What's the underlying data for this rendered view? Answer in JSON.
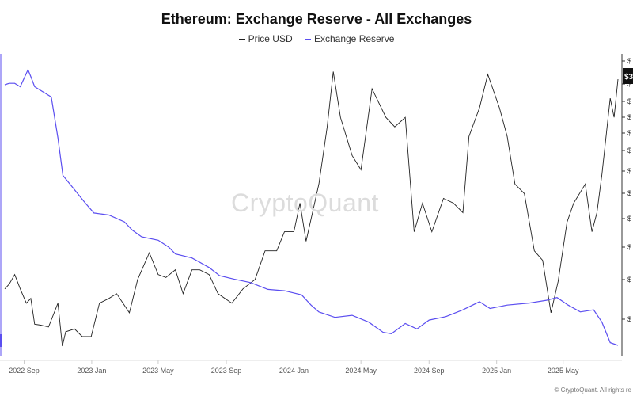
{
  "chart_data": {
    "type": "line",
    "title": "Ethereum: Exchange Reserve - All Exchanges",
    "legend_position": "top-center",
    "grid": false,
    "x_ticks": [
      "2022 Sep",
      "2023 Jan",
      "2023 May",
      "2023 Sep",
      "2024 Jan",
      "2024 May",
      "2024 Sep",
      "2025 Jan",
      "2025 May"
    ],
    "y_right_ticks": [
      "$",
      "$",
      "$",
      "$",
      "$",
      "$",
      "$",
      "$",
      "$",
      "$",
      "$",
      "$",
      "$",
      "$"
    ],
    "current_value_badge": "$3",
    "watermark": "CryptoQuant",
    "credit": "© CryptoQuant. All rights re",
    "series": [
      {
        "name": "Price USD",
        "axis": "right",
        "color": "#222222",
        "values": [
          [
            "2022-07-28",
            1700
          ],
          [
            "2022-08-05",
            1750
          ],
          [
            "2022-08-15",
            1850
          ],
          [
            "2022-08-25",
            1700
          ],
          [
            "2022-09-05",
            1550
          ],
          [
            "2022-09-13",
            1600
          ],
          [
            "2022-09-20",
            1330
          ],
          [
            "2022-10-01",
            1320
          ],
          [
            "2022-10-15",
            1300
          ],
          [
            "2022-11-01",
            1550
          ],
          [
            "2022-11-09",
            1100
          ],
          [
            "2022-11-15",
            1250
          ],
          [
            "2022-12-01",
            1280
          ],
          [
            "2022-12-15",
            1200
          ],
          [
            "2022-12-31",
            1200
          ],
          [
            "2023-01-15",
            1550
          ],
          [
            "2023-02-01",
            1600
          ],
          [
            "2023-02-15",
            1650
          ],
          [
            "2023-03-10",
            1450
          ],
          [
            "2023-03-25",
            1800
          ],
          [
            "2023-04-15",
            2080
          ],
          [
            "2023-05-01",
            1850
          ],
          [
            "2023-05-15",
            1820
          ],
          [
            "2023-06-01",
            1900
          ],
          [
            "2023-06-15",
            1650
          ],
          [
            "2023-07-01",
            1900
          ],
          [
            "2023-07-15",
            1900
          ],
          [
            "2023-08-01",
            1850
          ],
          [
            "2023-08-17",
            1650
          ],
          [
            "2023-09-11",
            1550
          ],
          [
            "2023-10-01",
            1700
          ],
          [
            "2023-10-23",
            1800
          ],
          [
            "2023-11-10",
            2100
          ],
          [
            "2023-12-01",
            2100
          ],
          [
            "2023-12-15",
            2300
          ],
          [
            "2024-01-01",
            2300
          ],
          [
            "2024-01-12",
            2600
          ],
          [
            "2024-01-23",
            2200
          ],
          [
            "2024-02-15",
            2800
          ],
          [
            "2024-03-01",
            3400
          ],
          [
            "2024-03-12",
            3980
          ],
          [
            "2024-03-25",
            3500
          ],
          [
            "2024-04-15",
            3100
          ],
          [
            "2024-05-01",
            2950
          ],
          [
            "2024-05-21",
            3800
          ],
          [
            "2024-06-15",
            3500
          ],
          [
            "2024-07-01",
            3400
          ],
          [
            "2024-07-20",
            3500
          ],
          [
            "2024-08-05",
            2300
          ],
          [
            "2024-08-20",
            2600
          ],
          [
            "2024-09-06",
            2300
          ],
          [
            "2024-09-27",
            2650
          ],
          [
            "2024-10-15",
            2600
          ],
          [
            "2024-11-01",
            2500
          ],
          [
            "2024-11-12",
            3300
          ],
          [
            "2024-12-01",
            3600
          ],
          [
            "2024-12-16",
            3950
          ],
          [
            "2025-01-06",
            3600
          ],
          [
            "2025-01-20",
            3300
          ],
          [
            "2025-02-03",
            2800
          ],
          [
            "2025-02-20",
            2700
          ],
          [
            "2025-03-10",
            2100
          ],
          [
            "2025-03-25",
            2000
          ],
          [
            "2025-04-09",
            1450
          ],
          [
            "2025-04-22",
            1780
          ],
          [
            "2025-05-08",
            2400
          ],
          [
            "2025-05-20",
            2600
          ],
          [
            "2025-06-10",
            2800
          ],
          [
            "2025-06-22",
            2300
          ],
          [
            "2025-07-01",
            2500
          ],
          [
            "2025-07-10",
            2900
          ],
          [
            "2025-07-25",
            3700
          ],
          [
            "2025-08-01",
            3500
          ],
          [
            "2025-08-08",
            3900
          ]
        ]
      },
      {
        "name": "Exchange Reserve",
        "axis": "left",
        "color": "#5b4ef0",
        "values": [
          [
            "2022-07-28",
            25.78
          ],
          [
            "2022-08-05",
            25.8
          ],
          [
            "2022-08-15",
            25.8
          ],
          [
            "2022-08-25",
            25.75
          ],
          [
            "2022-09-08",
            26.0
          ],
          [
            "2022-09-13",
            25.9
          ],
          [
            "2022-09-20",
            25.75
          ],
          [
            "2022-10-10",
            25.65
          ],
          [
            "2022-10-20",
            25.6
          ],
          [
            "2022-11-01",
            25.0
          ],
          [
            "2022-11-10",
            24.45
          ],
          [
            "2022-11-25",
            24.3
          ],
          [
            "2022-12-20",
            24.05
          ],
          [
            "2023-01-05",
            23.9
          ],
          [
            "2023-02-01",
            23.87
          ],
          [
            "2023-03-01",
            23.77
          ],
          [
            "2023-03-15",
            23.65
          ],
          [
            "2023-04-01",
            23.55
          ],
          [
            "2023-05-01",
            23.5
          ],
          [
            "2023-05-20",
            23.4
          ],
          [
            "2023-06-01",
            23.3
          ],
          [
            "2023-07-01",
            23.24
          ],
          [
            "2023-08-01",
            23.1
          ],
          [
            "2023-08-20",
            22.98
          ],
          [
            "2023-09-15",
            22.93
          ],
          [
            "2023-10-15",
            22.88
          ],
          [
            "2023-11-15",
            22.78
          ],
          [
            "2023-12-15",
            22.76
          ],
          [
            "2024-01-15",
            22.7
          ],
          [
            "2024-02-01",
            22.55
          ],
          [
            "2024-02-15",
            22.45
          ],
          [
            "2024-03-15",
            22.37
          ],
          [
            "2024-04-15",
            22.4
          ],
          [
            "2024-05-15",
            22.3
          ],
          [
            "2024-06-10",
            22.15
          ],
          [
            "2024-06-25",
            22.13
          ],
          [
            "2024-07-20",
            22.28
          ],
          [
            "2024-08-10",
            22.2
          ],
          [
            "2024-09-01",
            22.33
          ],
          [
            "2024-10-01",
            22.38
          ],
          [
            "2024-11-01",
            22.48
          ],
          [
            "2024-12-01",
            22.6
          ],
          [
            "2024-12-20",
            22.5
          ],
          [
            "2025-01-20",
            22.55
          ],
          [
            "2025-03-01",
            22.58
          ],
          [
            "2025-04-01",
            22.62
          ],
          [
            "2025-04-20",
            22.66
          ],
          [
            "2025-05-10",
            22.55
          ],
          [
            "2025-06-01",
            22.45
          ],
          [
            "2025-06-25",
            22.48
          ],
          [
            "2025-07-10",
            22.3
          ],
          [
            "2025-07-25",
            22.0
          ],
          [
            "2025-08-08",
            21.96
          ]
        ]
      }
    ]
  }
}
